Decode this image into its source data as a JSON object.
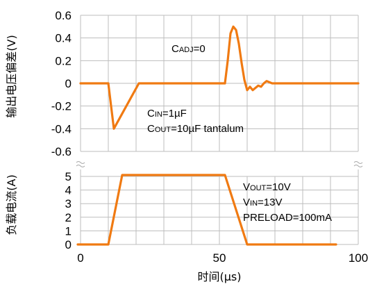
{
  "chart_data": [
    {
      "type": "line",
      "title": "",
      "xlabel": "",
      "ylabel": "输出电压偏差(V)",
      "xlim": [
        0,
        100
      ],
      "ylim": [
        -0.6,
        0.6
      ],
      "yticks": [
        "0.6",
        "0.4",
        "0.2",
        "0",
        "-0.2",
        "-0.4",
        "-0.6"
      ],
      "grid": true,
      "annotations": [
        {
          "main": "C",
          "sub": "ADJ",
          "rest": "=0"
        },
        {
          "main": "C",
          "sub": "IN",
          "rest": "=1µF"
        },
        {
          "main": "C",
          "sub": "OUT",
          "rest": "=10µF tantalum"
        }
      ],
      "series": [
        {
          "color": "#f07a12",
          "x": [
            0,
            10,
            12,
            21,
            52,
            53,
            54,
            55,
            56,
            57,
            58,
            59,
            60,
            61,
            62,
            63,
            64,
            65,
            66,
            67,
            68,
            69,
            70,
            100
          ],
          "y": [
            0,
            0,
            -0.4,
            0,
            0,
            0.2,
            0.44,
            0.5,
            0.47,
            0.35,
            0.18,
            0.03,
            -0.06,
            -0.03,
            -0.06,
            -0.04,
            -0.02,
            -0.03,
            0.0,
            0.02,
            0.01,
            0.0,
            0.0,
            0.0
          ]
        }
      ]
    },
    {
      "type": "line",
      "title": "",
      "xlabel": "时间(µs)",
      "ylabel": "负载电流(A)",
      "xlim": [
        0,
        100
      ],
      "ylim": [
        0,
        5
      ],
      "xticks": [
        "0",
        "50",
        "100"
      ],
      "yticks": [
        "5",
        "4",
        "3",
        "2",
        "1",
        "0"
      ],
      "grid": true,
      "annotations": [
        {
          "main": "V",
          "sub": "OUT",
          "rest": "=10V"
        },
        {
          "main": "V",
          "sub": "IN",
          "rest": "=13V"
        },
        {
          "main": "PRELOAD=100mA",
          "sub": "",
          "rest": ""
        }
      ],
      "series": [
        {
          "color": "#f07a12",
          "x": [
            -1,
            10,
            15,
            52,
            60,
            92
          ],
          "y": [
            0,
            0,
            5.1,
            5.1,
            0,
            0
          ]
        }
      ]
    }
  ]
}
